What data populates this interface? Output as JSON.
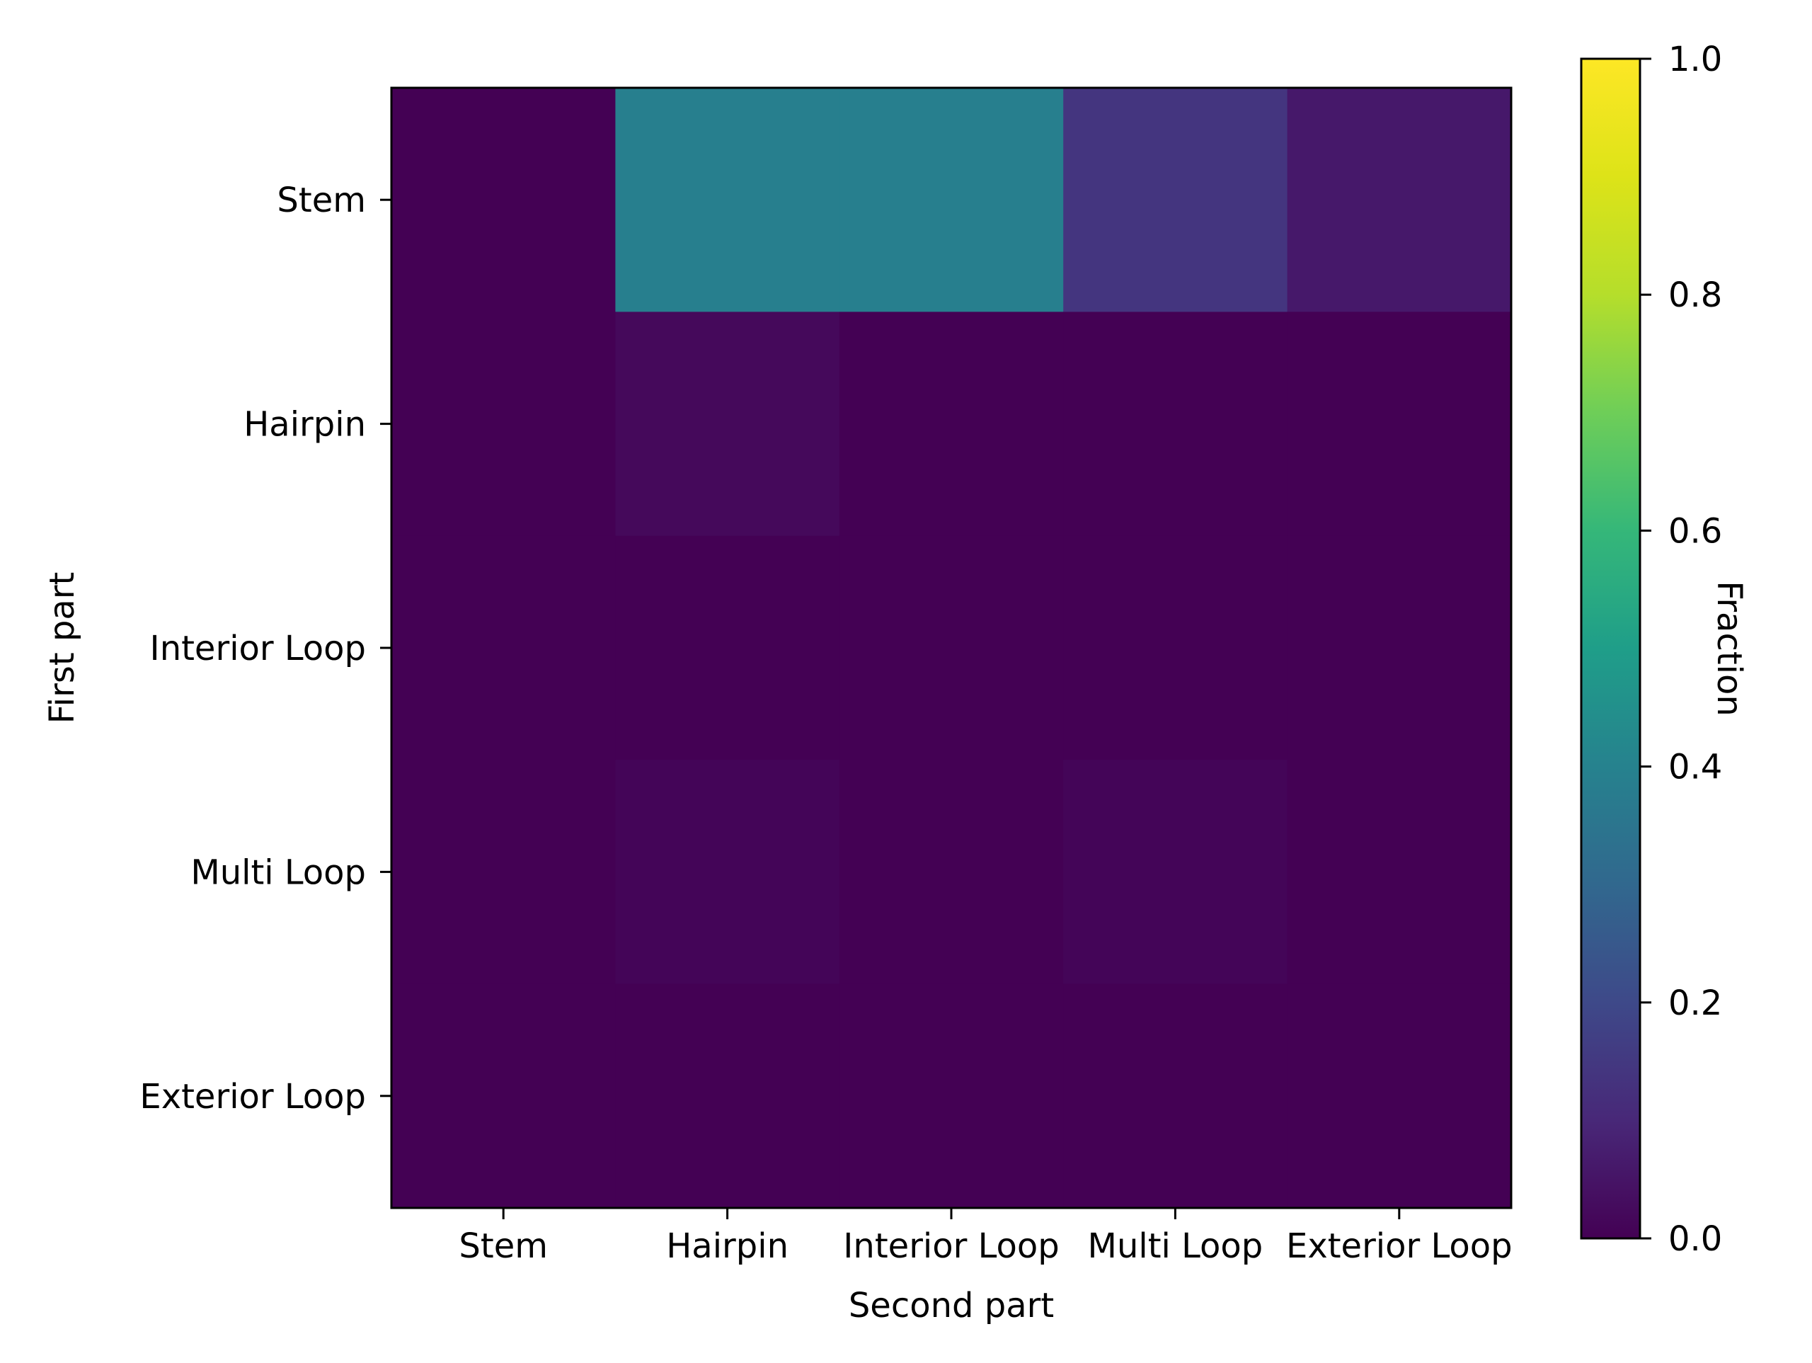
{
  "chart_data": {
    "type": "heatmap",
    "xlabel": "Second part",
    "ylabel": "First part",
    "x_categories": [
      "Stem",
      "Hairpin",
      "Interior Loop",
      "Multi Loop",
      "Exterior Loop"
    ],
    "y_categories": [
      "Stem",
      "Hairpin",
      "Interior Loop",
      "Multi Loop",
      "Exterior Loop"
    ],
    "values": [
      [
        0.0,
        0.39,
        0.39,
        0.14,
        0.06
      ],
      [
        0.0,
        0.02,
        0.0,
        0.0,
        0.0
      ],
      [
        0.0,
        0.0,
        0.0,
        0.0,
        0.0
      ],
      [
        0.0,
        0.01,
        0.0,
        0.01,
        0.0
      ],
      [
        0.0,
        0.0,
        0.0,
        0.0,
        0.0
      ]
    ],
    "colormap": "viridis",
    "vmin": 0.0,
    "vmax": 1.0,
    "colorbar": {
      "label": "Fraction",
      "ticks": [
        "0.0",
        "0.2",
        "0.4",
        "0.6",
        "0.8",
        "1.0"
      ]
    }
  }
}
